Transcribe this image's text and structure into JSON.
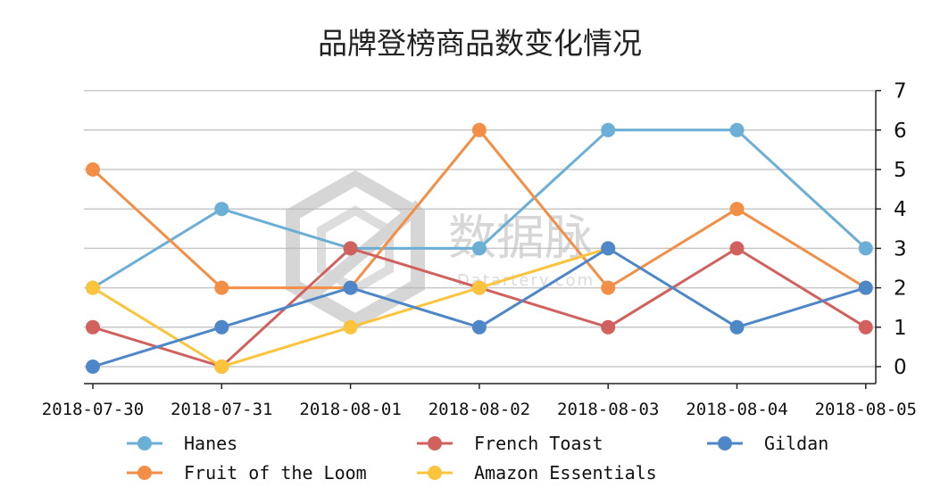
{
  "chart_data": {
    "type": "line",
    "title": "品牌登榜商品数变化情况",
    "categories": [
      "2018-07-30",
      "2018-07-31",
      "2018-08-01",
      "2018-08-02",
      "2018-08-03",
      "2018-08-04",
      "2018-08-05"
    ],
    "ylim": [
      0,
      7
    ],
    "yticks": [
      0,
      1,
      2,
      3,
      4,
      5,
      6,
      7
    ],
    "y_axis_position": "right",
    "grid": true,
    "legend_position": "bottom",
    "series": [
      {
        "name": "Hanes",
        "color": "#6baed6",
        "values": [
          2,
          4,
          3,
          3,
          6,
          6,
          3
        ]
      },
      {
        "name": "Fruit of the Loom",
        "color": "#f28e45",
        "values": [
          5,
          2,
          2,
          6,
          2,
          4,
          2
        ]
      },
      {
        "name": "French Toast",
        "color": "#d1615d",
        "values": [
          1,
          0,
          3,
          2,
          1,
          3,
          1
        ]
      },
      {
        "name": "Amazon Essentials",
        "color": "#fcc43c",
        "values": [
          2,
          0,
          1,
          2,
          3,
          null,
          null
        ]
      },
      {
        "name": "Gildan",
        "color": "#4e87c8",
        "values": [
          0,
          1,
          2,
          1,
          3,
          1,
          2
        ]
      }
    ]
  },
  "watermark": {
    "text": "数据脉",
    "sub": "Datartery.com"
  }
}
